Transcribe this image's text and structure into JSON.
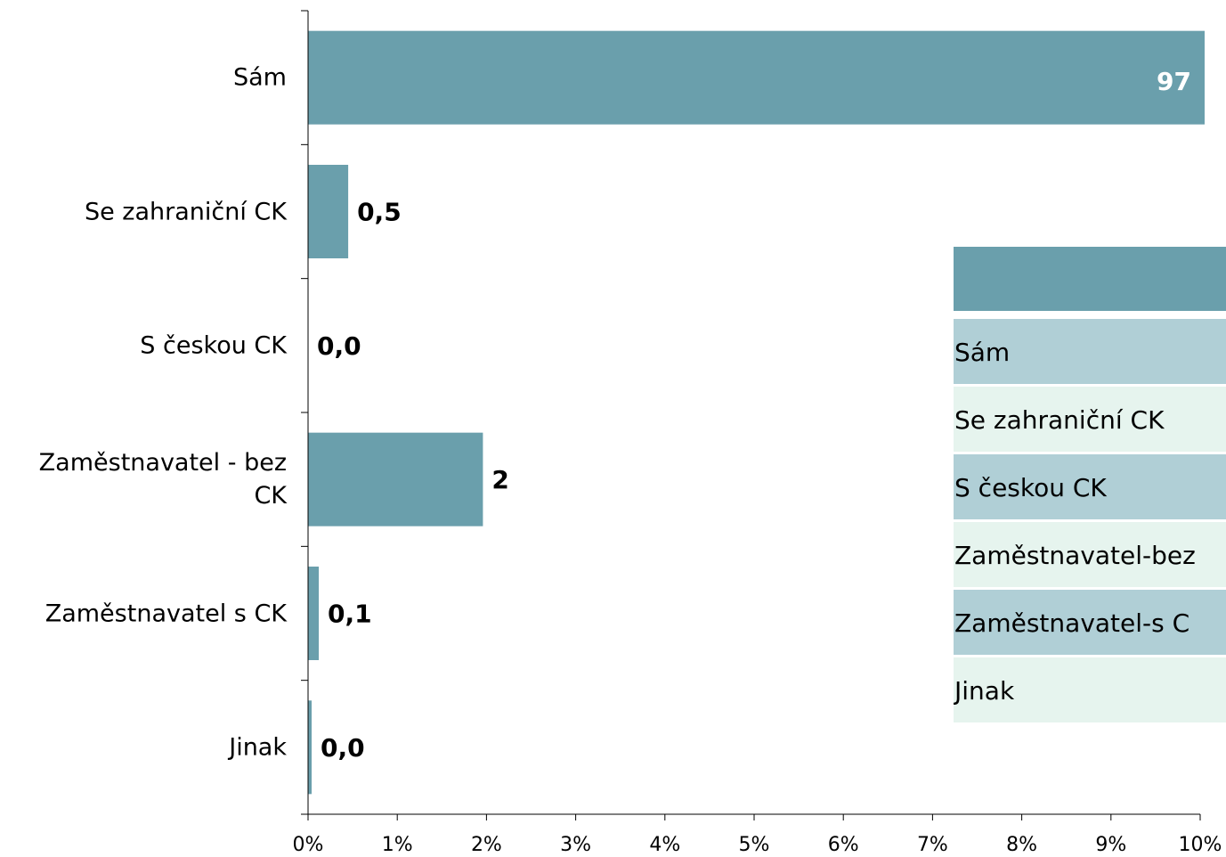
{
  "chart_data": {
    "type": "bar",
    "orientation": "horizontal",
    "categories": [
      "Sám",
      "Se zahraniční CK",
      "S českou CK",
      "Zaměstnavatel - bez CK",
      "Zaměstnavatel s CK",
      "Jinak"
    ],
    "values": [
      97,
      0.45,
      0,
      1.96,
      0.12,
      0.04
    ],
    "value_labels": [
      "97",
      "0,5",
      "0,0",
      "2",
      "0,1",
      "0,0"
    ],
    "color": "#6a9fac",
    "xlim": [
      0,
      10
    ],
    "xticks": [
      {
        "value": 0,
        "label": "0%"
      },
      {
        "value": 1,
        "label": "1%"
      },
      {
        "value": 2,
        "label": "2%"
      },
      {
        "value": 3,
        "label": "3%"
      },
      {
        "value": 4,
        "label": "4%"
      },
      {
        "value": 5,
        "label": "5%"
      },
      {
        "value": 6,
        "label": "6%"
      },
      {
        "value": 7,
        "label": "7%"
      },
      {
        "value": 8,
        "label": "8%"
      },
      {
        "value": 9,
        "label": "9%"
      },
      {
        "value": 10,
        "label": "10%"
      }
    ],
    "grid": false
  },
  "overlay_table": {
    "rows": [
      "Sám",
      "Se zahraniční CK",
      "S českou CK",
      "Zaměstnavatel-bez",
      "Zaměstnavatel-s C",
      "Jinak"
    ]
  }
}
